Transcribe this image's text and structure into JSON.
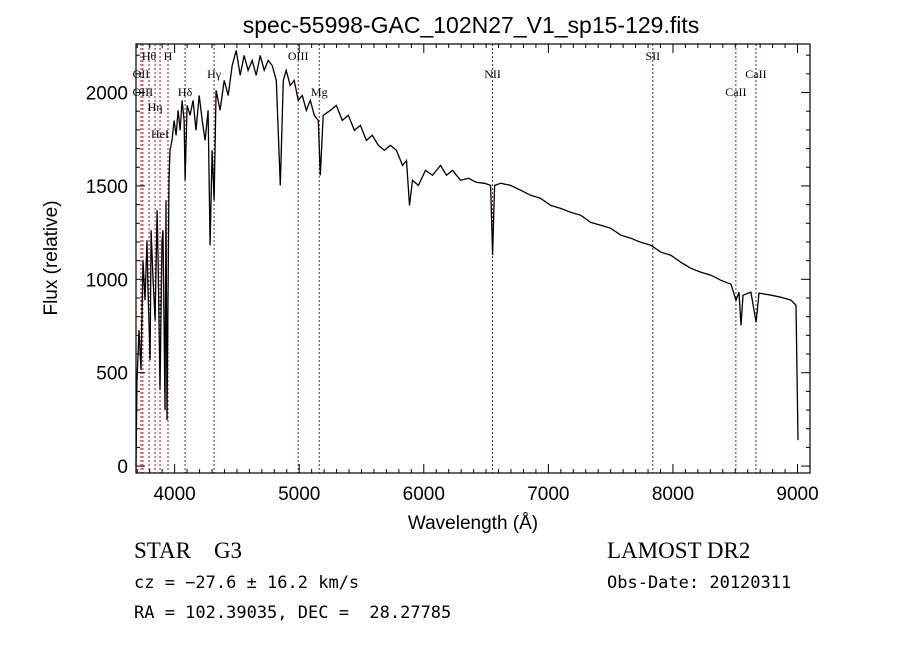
{
  "chart_data": {
    "type": "line",
    "title": "spec-55998-GAC_102N27_V1_sp15-129.fits",
    "xlabel": "Wavelength (Å)",
    "ylabel": "Flux (relative)",
    "xlim": [
      3690,
      9100
    ],
    "ylim": [
      -37,
      2260
    ],
    "xticks": [
      4000,
      5000,
      6000,
      7000,
      8000,
      9000
    ],
    "xtick_labels": [
      "4000",
      "5000",
      "6000",
      "7000",
      "8000",
      "9000"
    ],
    "yticks": [
      0,
      500,
      1000,
      1500,
      2000
    ],
    "ytick_labels": [
      "0",
      "500",
      "1000",
      "1500",
      "2000"
    ],
    "grid": false,
    "series": [
      {
        "name": "spectrum",
        "color": "#000000",
        "points": [
          [
            3690,
            0
          ],
          [
            3698,
            460
          ],
          [
            3714,
            728
          ],
          [
            3730,
            514
          ],
          [
            3746,
            1102
          ],
          [
            3762,
            888
          ],
          [
            3778,
            1209
          ],
          [
            3786,
            942
          ],
          [
            3803,
            567
          ],
          [
            3811,
            1263
          ],
          [
            3827,
            995
          ],
          [
            3843,
            781
          ],
          [
            3859,
            1370
          ],
          [
            3867,
            1102
          ],
          [
            3883,
            407
          ],
          [
            3899,
            1209
          ],
          [
            3907,
            1263
          ],
          [
            3923,
            300
          ],
          [
            3931,
            1423
          ],
          [
            3939,
            246
          ],
          [
            3955,
            1530
          ],
          [
            3963,
            1691
          ],
          [
            3979,
            1744
          ],
          [
            3996,
            1851
          ],
          [
            4012,
            1771
          ],
          [
            4028,
            1905
          ],
          [
            4044,
            1798
          ],
          [
            4060,
            1958
          ],
          [
            4076,
            1851
          ],
          [
            4084,
            1530
          ],
          [
            4100,
            1931
          ],
          [
            4124,
            1878
          ],
          [
            4148,
            1958
          ],
          [
            4172,
            1798
          ],
          [
            4197,
            1985
          ],
          [
            4221,
            1851
          ],
          [
            4245,
            1744
          ],
          [
            4269,
            1905
          ],
          [
            4285,
            1182
          ],
          [
            4301,
            1691
          ],
          [
            4317,
            1423
          ],
          [
            4333,
            2012
          ],
          [
            4365,
            1905
          ],
          [
            4398,
            2065
          ],
          [
            4430,
            1985
          ],
          [
            4462,
            2145
          ],
          [
            4494,
            2226
          ],
          [
            4526,
            2092
          ],
          [
            4558,
            2199
          ],
          [
            4590,
            2119
          ],
          [
            4623,
            2172
          ],
          [
            4655,
            2092
          ],
          [
            4687,
            2199
          ],
          [
            4719,
            2119
          ],
          [
            4751,
            2172
          ],
          [
            4783,
            2145
          ],
          [
            4816,
            2065
          ],
          [
            4848,
            1503
          ],
          [
            4872,
            2065
          ],
          [
            4896,
            2119
          ],
          [
            4928,
            2038
          ],
          [
            4960,
            2065
          ],
          [
            4992,
            1958
          ],
          [
            5025,
            1985
          ],
          [
            5057,
            1905
          ],
          [
            5089,
            1958
          ],
          [
            5121,
            1878
          ],
          [
            5153,
            1851
          ],
          [
            5169,
            1557
          ],
          [
            5193,
            1878
          ],
          [
            5250,
            1905
          ],
          [
            5298,
            1931
          ],
          [
            5346,
            1851
          ],
          [
            5394,
            1878
          ],
          [
            5443,
            1798
          ],
          [
            5491,
            1824
          ],
          [
            5539,
            1744
          ],
          [
            5587,
            1771
          ],
          [
            5636,
            1717
          ],
          [
            5684,
            1691
          ],
          [
            5732,
            1717
          ],
          [
            5780,
            1691
          ],
          [
            5829,
            1610
          ],
          [
            5861,
            1637
          ],
          [
            5885,
            1396
          ],
          [
            5909,
            1530
          ],
          [
            5957,
            1503
          ],
          [
            6014,
            1584
          ],
          [
            6070,
            1557
          ],
          [
            6134,
            1610
          ],
          [
            6182,
            1557
          ],
          [
            6231,
            1584
          ],
          [
            6295,
            1530
          ],
          [
            6359,
            1541
          ],
          [
            6424,
            1519
          ],
          [
            6488,
            1514
          ],
          [
            6536,
            1503
          ],
          [
            6552,
            1129
          ],
          [
            6568,
            1503
          ],
          [
            6617,
            1514
          ],
          [
            6697,
            1503
          ],
          [
            6777,
            1477
          ],
          [
            6858,
            1450
          ],
          [
            6938,
            1434
          ],
          [
            7019,
            1396
          ],
          [
            7099,
            1380
          ],
          [
            7179,
            1359
          ],
          [
            7260,
            1343
          ],
          [
            7340,
            1305
          ],
          [
            7421,
            1289
          ],
          [
            7501,
            1273
          ],
          [
            7581,
            1236
          ],
          [
            7662,
            1220
          ],
          [
            7742,
            1198
          ],
          [
            7823,
            1182
          ],
          [
            7903,
            1145
          ],
          [
            7983,
            1129
          ],
          [
            8064,
            1091
          ],
          [
            8144,
            1059
          ],
          [
            8225,
            1038
          ],
          [
            8305,
            1022
          ],
          [
            8385,
            995
          ],
          [
            8466,
            974
          ],
          [
            8506,
            888
          ],
          [
            8530,
            931
          ],
          [
            8546,
            754
          ],
          [
            8562,
            915
          ],
          [
            8626,
            931
          ],
          [
            8667,
            770
          ],
          [
            8691,
            926
          ],
          [
            8788,
            915
          ],
          [
            8868,
            904
          ],
          [
            8948,
            888
          ],
          [
            8988,
            861
          ],
          [
            9004,
            139
          ]
        ]
      }
    ],
    "line_markers": [
      {
        "name": "OII",
        "wavelength": 3730,
        "row": 2
      },
      {
        "name": "Hθ",
        "wavelength": 3795,
        "row": 1
      },
      {
        "name": "OIII",
        "wavelength": 3745,
        "row": 3
      },
      {
        "name": "Hη",
        "wavelength": 3843,
        "row": 3
      },
      {
        "name": "HeI",
        "wavelength": 3883,
        "row": 2
      },
      {
        "name": "H",
        "wavelength": 3947,
        "row": 1
      },
      {
        "name": "Hδ",
        "wavelength": 4084,
        "row": 3
      },
      {
        "name": "Hγ",
        "wavelength": 4317,
        "row": 2
      },
      {
        "name": "OIII",
        "wavelength": 4992,
        "row": 1
      },
      {
        "name": "Mg",
        "wavelength": 5161,
        "row": 3
      },
      {
        "name": "NII",
        "wavelength": 6552,
        "row": 2
      },
      {
        "name": "SII",
        "wavelength": 7838,
        "row": 1
      },
      {
        "name": "CaII",
        "wavelength": 8505,
        "row": 3
      },
      {
        "name": "CaII",
        "wavelength": 8666,
        "row": 2
      }
    ],
    "marker_color": "#8b1a1a"
  },
  "info": {
    "object_class": "STAR    G3",
    "survey": "LAMOST DR2",
    "redshift": "cz = −27.6 ± 16.2 km/s",
    "obs_date": "Obs-Date: 20120311",
    "coords": "RA = 102.39035, DEC =  28.27785"
  }
}
